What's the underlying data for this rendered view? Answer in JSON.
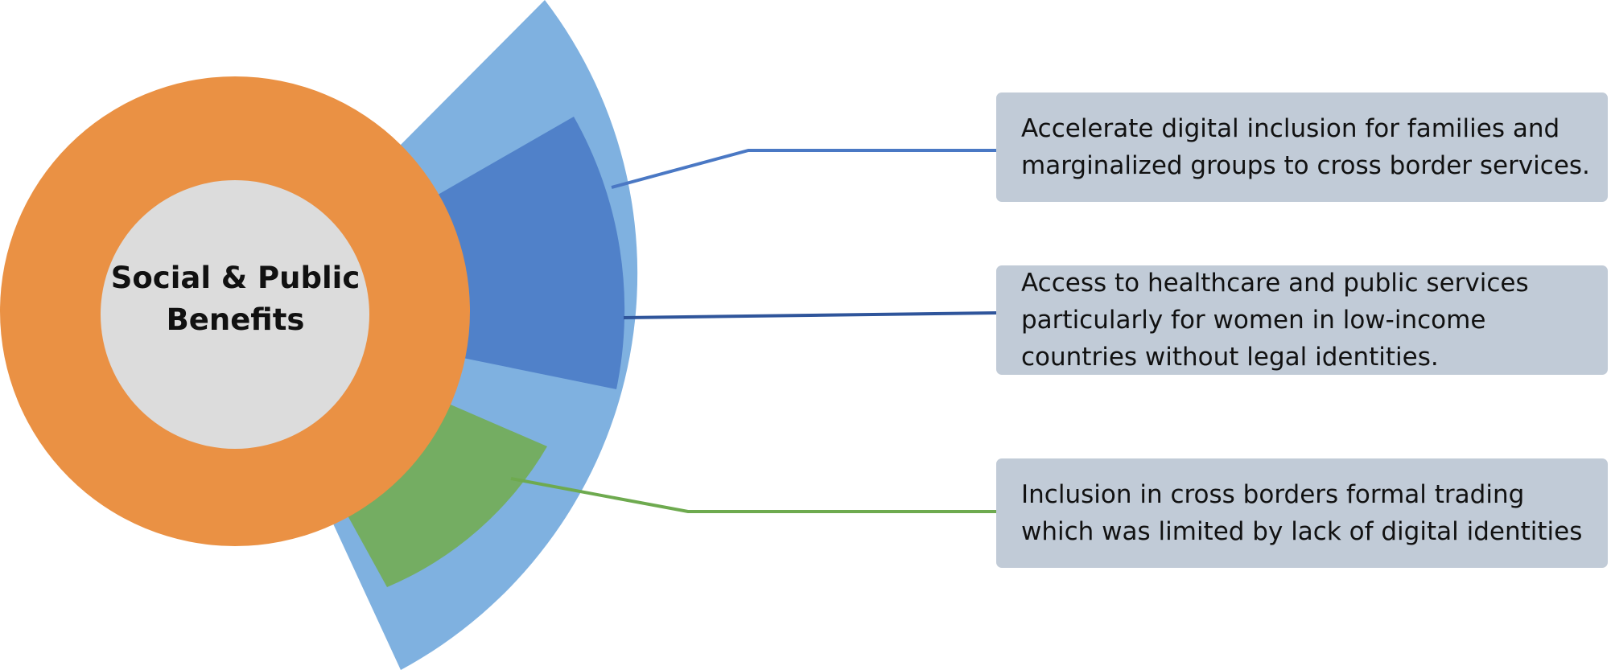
{
  "center": {
    "line1": "Social & Public",
    "line2": "Benefits"
  },
  "callouts": [
    {
      "lines": [
        "Accelerate digital inclusion for families and",
        "marginalized groups to cross border services."
      ]
    },
    {
      "lines": [
        "Access to healthcare and public services",
        "particularly for women in low-income",
        "countries without legal identities."
      ]
    },
    {
      "lines": [
        "Inclusion in cross borders formal trading",
        "which was limited by lack of digital identities"
      ]
    }
  ],
  "colors": {
    "outer_ring": "#ea9144",
    "inner_circle": "#dcdcdc",
    "light_sector": "#7fb1e0",
    "dark_blue_sector": "#5081c9",
    "green_sector": "#74ad62",
    "callout_box": "#c1cbd7",
    "connector_top": "#4a78c4",
    "connector_middle": "#2f559b",
    "connector_bottom": "#6eaa4f"
  }
}
